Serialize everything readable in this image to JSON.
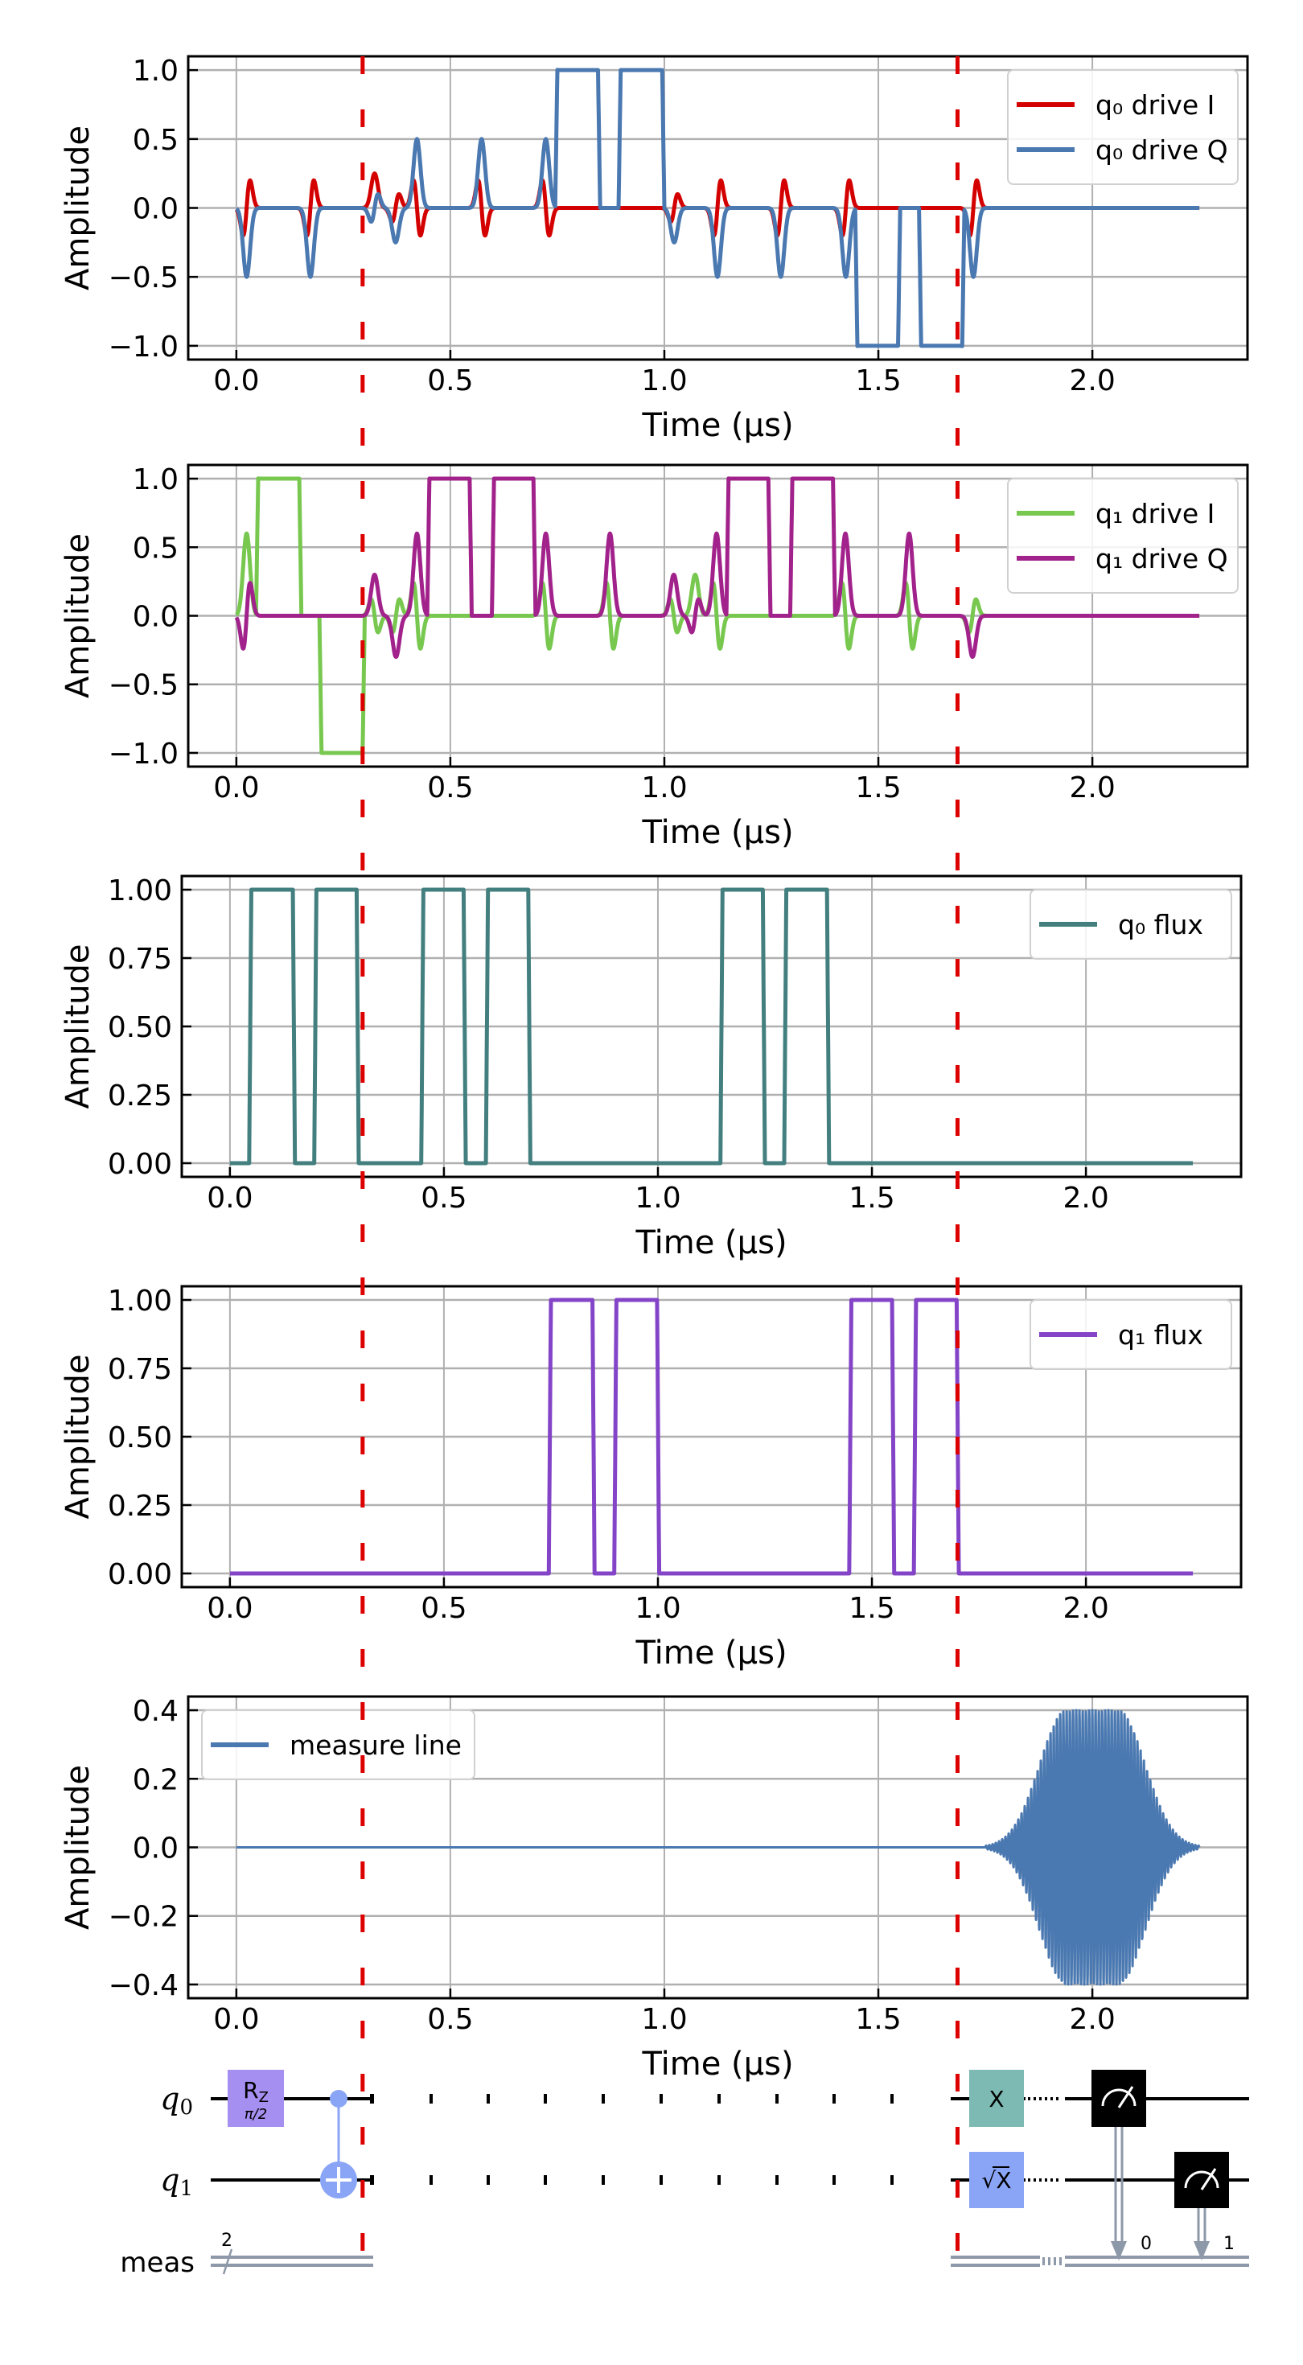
{
  "chart_data": [
    {
      "type": "line",
      "xlabel": "Time (μs)",
      "ylabel": "Amplitude",
      "xlim": [
        -0.1125,
        2.3625
      ],
      "ylim": [
        -1.1,
        1.1
      ],
      "xticks": [
        0,
        0.5,
        1.0,
        1.5,
        2.0
      ],
      "xtick_labels": [
        "0.0",
        "0.5",
        "1.0",
        "1.5",
        "2.0"
      ],
      "yticks": [
        -1,
        -0.5,
        0,
        0.5,
        1
      ],
      "ytick_labels": [
        "−1.0",
        "−0.5",
        "0.0",
        "0.5",
        "1.0"
      ],
      "grid": true,
      "legend": "upper right",
      "time_end": 2.25,
      "pulses": {
        "sigma": 0.008,
        "drag": 0.4,
        "gaussian": [
          {
            "t": 0.024,
            "I": 0,
            "Q": -0.5
          },
          {
            "t": 0.173,
            "I": 0,
            "Q": -0.5
          },
          {
            "t": 0.323,
            "I": 0.25,
            "Q": 0
          },
          {
            "t": 0.372,
            "I": 0,
            "Q": -0.25
          },
          {
            "t": 0.422,
            "I": 0,
            "Q": 0.5
          },
          {
            "t": 0.573,
            "I": 0,
            "Q": 0.5
          },
          {
            "t": 0.723,
            "I": 0,
            "Q": 0.5
          },
          {
            "t": 1.023,
            "I": 0,
            "Q": -0.25
          },
          {
            "t": 1.124,
            "I": 0,
            "Q": -0.5
          },
          {
            "t": 1.272,
            "I": 0,
            "Q": -0.5
          },
          {
            "t": 1.424,
            "I": 0,
            "Q": -0.5
          },
          {
            "t": 1.722,
            "I": 0,
            "Q": -0.5
          }
        ],
        "square": [
          {
            "start": 0.75,
            "end": 0.845,
            "I": 0,
            "Q": 1
          },
          {
            "start": 0.898,
            "end": 0.995,
            "I": 0,
            "Q": 1
          },
          {
            "start": 1.451,
            "end": 1.546,
            "I": 0,
            "Q": -1
          },
          {
            "start": 1.6,
            "end": 1.696,
            "I": 0,
            "Q": -1
          }
        ]
      },
      "series": [
        {
          "name": "q₀ drive I",
          "component": "I",
          "color": "#d40000"
        },
        {
          "name": "q₀ drive Q",
          "component": "Q",
          "color": "#4a78b0"
        }
      ]
    },
    {
      "type": "line",
      "xlabel": "Time (μs)",
      "ylabel": "Amplitude",
      "xlim": [
        -0.1125,
        2.3625
      ],
      "ylim": [
        -1.1,
        1.1
      ],
      "xticks": [
        0,
        0.5,
        1.0,
        1.5,
        2.0
      ],
      "xtick_labels": [
        "0.0",
        "0.5",
        "1.0",
        "1.5",
        "2.0"
      ],
      "yticks": [
        -1,
        -0.5,
        0,
        0.5,
        1
      ],
      "ytick_labels": [
        "−1.0",
        "−0.5",
        "0.0",
        "0.5",
        "1.0"
      ],
      "grid": true,
      "legend": "upper right",
      "time_end": 2.25,
      "pulses": {
        "sigma": 0.008,
        "drag": 0.4,
        "gaussian": [
          {
            "t": 0.024,
            "I": 0.6,
            "Q": 0
          },
          {
            "t": 0.323,
            "I": 0,
            "Q": 0.3
          },
          {
            "t": 0.373,
            "I": 0,
            "Q": -0.3
          },
          {
            "t": 0.422,
            "I": 0,
            "Q": 0.6
          },
          {
            "t": 0.723,
            "I": 0,
            "Q": 0.6
          },
          {
            "t": 0.873,
            "I": 0,
            "Q": 0.6
          },
          {
            "t": 1.022,
            "I": 0,
            "Q": 0.3
          },
          {
            "t": 1.072,
            "I": 0.3,
            "Q": 0
          },
          {
            "t": 1.122,
            "I": 0,
            "Q": 0.6
          },
          {
            "t": 1.423,
            "I": 0,
            "Q": 0.6
          },
          {
            "t": 1.572,
            "I": 0,
            "Q": 0.6
          },
          {
            "t": 1.72,
            "I": 0,
            "Q": -0.3
          }
        ],
        "square": [
          {
            "start": 0.051,
            "end": 0.147,
            "I": 1,
            "Q": 0
          },
          {
            "start": 0.199,
            "end": 0.295,
            "I": -1,
            "Q": 0
          },
          {
            "start": 0.451,
            "end": 0.545,
            "I": 0,
            "Q": 1
          },
          {
            "start": 0.602,
            "end": 0.694,
            "I": 0,
            "Q": 1
          },
          {
            "start": 1.15,
            "end": 1.243,
            "I": 0,
            "Q": 1
          },
          {
            "start": 1.299,
            "end": 1.394,
            "I": 0,
            "Q": 1
          }
        ]
      },
      "series": [
        {
          "name": "q₁ drive I",
          "component": "I",
          "color": "#78c850"
        },
        {
          "name": "q₁ drive Q",
          "component": "Q",
          "color": "#a2228c"
        }
      ]
    },
    {
      "type": "line",
      "xlabel": "Time (μs)",
      "ylabel": "Amplitude",
      "xlim": [
        -0.1125,
        2.3625
      ],
      "ylim": [
        -0.05,
        1.05
      ],
      "xticks": [
        0,
        0.5,
        1.0,
        1.5,
        2.0
      ],
      "xtick_labels": [
        "0.0",
        "0.5",
        "1.0",
        "1.5",
        "2.0"
      ],
      "yticks": [
        0,
        0.25,
        0.5,
        0.75,
        1.0
      ],
      "ytick_labels": [
        "0.00",
        "0.25",
        "0.50",
        "0.75",
        "1.00"
      ],
      "grid": true,
      "legend": "upper right",
      "time_end": 2.25,
      "pulses": {
        "gaussian": [],
        "square": [
          {
            "start": 0.05,
            "end": 0.147,
            "I": 1,
            "Q": 0
          },
          {
            "start": 0.202,
            "end": 0.296,
            "I": 1,
            "Q": 0
          },
          {
            "start": 0.452,
            "end": 0.546,
            "I": 1,
            "Q": 0
          },
          {
            "start": 0.603,
            "end": 0.697,
            "I": 1,
            "Q": 0
          },
          {
            "start": 1.151,
            "end": 1.245,
            "I": 1,
            "Q": 0
          },
          {
            "start": 1.3,
            "end": 1.395,
            "I": 1,
            "Q": 0
          }
        ]
      },
      "series": [
        {
          "name": "q₀ flux",
          "component": "I",
          "color": "#437f7f"
        }
      ]
    },
    {
      "type": "line",
      "xlabel": "Time (μs)",
      "ylabel": "Amplitude",
      "xlim": [
        -0.1125,
        2.3625
      ],
      "ylim": [
        -0.05,
        1.05
      ],
      "xticks": [
        0,
        0.5,
        1.0,
        1.5,
        2.0
      ],
      "xtick_labels": [
        "0.0",
        "0.5",
        "1.0",
        "1.5",
        "2.0"
      ],
      "yticks": [
        0,
        0.25,
        0.5,
        0.75,
        1.0
      ],
      "ytick_labels": [
        "0.00",
        "0.25",
        "0.50",
        "0.75",
        "1.00"
      ],
      "grid": true,
      "legend": "upper right",
      "time_end": 2.25,
      "pulses": {
        "gaussian": [],
        "square": [
          {
            "start": 0.75,
            "end": 0.847,
            "I": 1,
            "Q": 0
          },
          {
            "start": 0.903,
            "end": 0.998,
            "I": 1,
            "Q": 0
          },
          {
            "start": 1.452,
            "end": 1.547,
            "I": 1,
            "Q": 0
          },
          {
            "start": 1.603,
            "end": 1.698,
            "I": 1,
            "Q": 0
          }
        ]
      },
      "series": [
        {
          "name": "q₁ flux",
          "component": "I",
          "color": "#8444c8"
        }
      ]
    },
    {
      "type": "line",
      "xlabel": "Time (μs)",
      "ylabel": "Amplitude",
      "xlim": [
        -0.1125,
        2.3625
      ],
      "ylim": [
        -0.44,
        0.44
      ],
      "xticks": [
        0,
        0.5,
        1.0,
        1.5,
        2.0
      ],
      "xtick_labels": [
        "0.0",
        "0.5",
        "1.0",
        "1.5",
        "2.0"
      ],
      "yticks": [
        -0.4,
        -0.2,
        0,
        0.2,
        0.4
      ],
      "ytick_labels": [
        "−0.4",
        "−0.2",
        "0.0",
        "0.2",
        "0.4"
      ],
      "grid": true,
      "legend": "upper left",
      "time_end": 2.25,
      "pulses": {
        "tone": {
          "start": 1.75,
          "flat_start": 1.94,
          "flat_end": 2.06,
          "end": 2.25,
          "amplitude": 0.4
        }
      },
      "series": [
        {
          "name": "measure line",
          "component": "tone",
          "color": "#4a78b0"
        }
      ]
    }
  ],
  "barriers": {
    "times": [
      0.295,
      1.685
    ],
    "color": "#dd0000"
  },
  "circuit": {
    "qubits": [
      {
        "base": "q",
        "sub": "0"
      },
      {
        "base": "q",
        "sub": "1"
      }
    ],
    "classical_register": {
      "label": "meas",
      "size": "2"
    },
    "gates": {
      "rz": {
        "label": "R",
        "sub": "Z",
        "param": "π/2",
        "color": "#a58ff0"
      },
      "cx": {
        "color": "#8aa5f5"
      },
      "x": {
        "label": "X",
        "color": "#7dbab3"
      },
      "sx": {
        "label": "√X",
        "color": "#8aa5f5"
      },
      "measure_bits": [
        "0",
        "1"
      ]
    }
  }
}
